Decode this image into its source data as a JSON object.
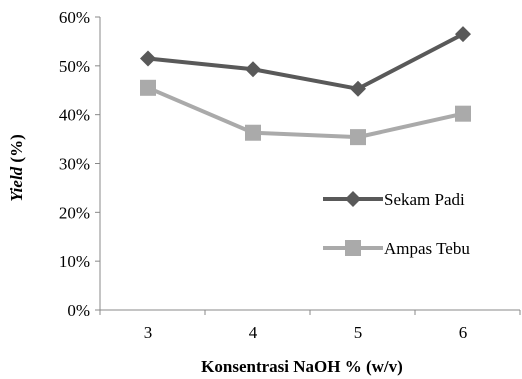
{
  "chart_data": {
    "type": "line",
    "xlabel": "Konsentrasi NaOH % (w/v)",
    "ylabel_italic": "Yield",
    "ylabel_suffix": " (%)",
    "categories": [
      "3",
      "4",
      "5",
      "6"
    ],
    "y_ticks": [
      "0%",
      "10%",
      "20%",
      "30%",
      "40%",
      "50%",
      "60%"
    ],
    "ylim": [
      0,
      60
    ],
    "grid": false,
    "legend_position": "right-middle",
    "series": [
      {
        "name": "Sekam Padi",
        "values": [
          51.5,
          49.3,
          45.3,
          56.5
        ],
        "color": "#595959",
        "marker": "diamond"
      },
      {
        "name": "Ampas Tebu",
        "values": [
          45.5,
          36.3,
          35.4,
          40.2
        ],
        "color": "#aaaaaa",
        "marker": "square"
      }
    ]
  }
}
